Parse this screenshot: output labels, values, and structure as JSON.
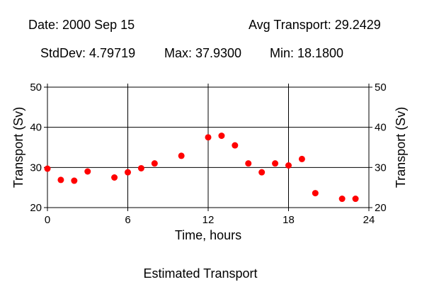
{
  "header": {
    "date": "Date: 2000 Sep 15",
    "avg": "Avg Transport: 29.2429",
    "stddev": "StdDev: 4.79719",
    "max": "Max: 37.9300",
    "min": "Min: 18.1800"
  },
  "chart_data": {
    "type": "scatter",
    "title": "Estimated Transport",
    "xlabel": "Time, hours",
    "ylabel": "Transport (Sv)",
    "xlim": [
      0,
      24
    ],
    "ylim": [
      20,
      50
    ],
    "xticks": [
      0,
      6,
      12,
      18,
      24
    ],
    "yticks": [
      20,
      30,
      40,
      50
    ],
    "grid": true,
    "marker_color": "#ff0000",
    "x": [
      0,
      1,
      2,
      3,
      5,
      6,
      7,
      8,
      10,
      12,
      13,
      14,
      15,
      16,
      17,
      18,
      19,
      20,
      22,
      23
    ],
    "y": [
      29.7,
      26.9,
      26.7,
      29.0,
      27.5,
      28.8,
      29.8,
      31.0,
      32.9,
      37.5,
      37.9,
      35.5,
      31.0,
      28.8,
      31.0,
      30.5,
      32.1,
      23.6,
      22.2,
      22.2
    ]
  }
}
